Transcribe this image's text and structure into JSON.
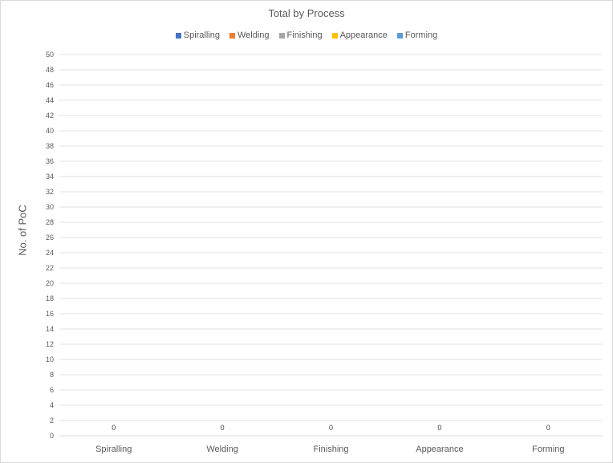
{
  "chart_data": {
    "type": "bar",
    "title": "Total by Process",
    "ylabel": "No. of PoC",
    "xlabel": "",
    "categories": [
      "Spiralling",
      "Welding",
      "Finishing",
      "Appearance",
      "Forming"
    ],
    "series": [
      {
        "name": "Spiralling",
        "values": [
          0,
          null,
          null,
          null,
          null
        ],
        "color": "#4472c4"
      },
      {
        "name": "Welding",
        "values": [
          null,
          0,
          null,
          null,
          null
        ],
        "color": "#ed7d31"
      },
      {
        "name": "Finishing",
        "values": [
          null,
          null,
          0,
          null,
          null
        ],
        "color": "#a5a5a5"
      },
      {
        "name": "Appearance",
        "values": [
          null,
          null,
          null,
          0,
          null
        ],
        "color": "#ffc000"
      },
      {
        "name": "Forming",
        "values": [
          null,
          null,
          null,
          null,
          0
        ],
        "color": "#5b9bd5"
      }
    ],
    "data_labels": [
      "0",
      "0",
      "0",
      "0",
      "0"
    ],
    "ylim": [
      0,
      50
    ],
    "ytick_step": 2,
    "grid": true,
    "legend_position": "top"
  }
}
